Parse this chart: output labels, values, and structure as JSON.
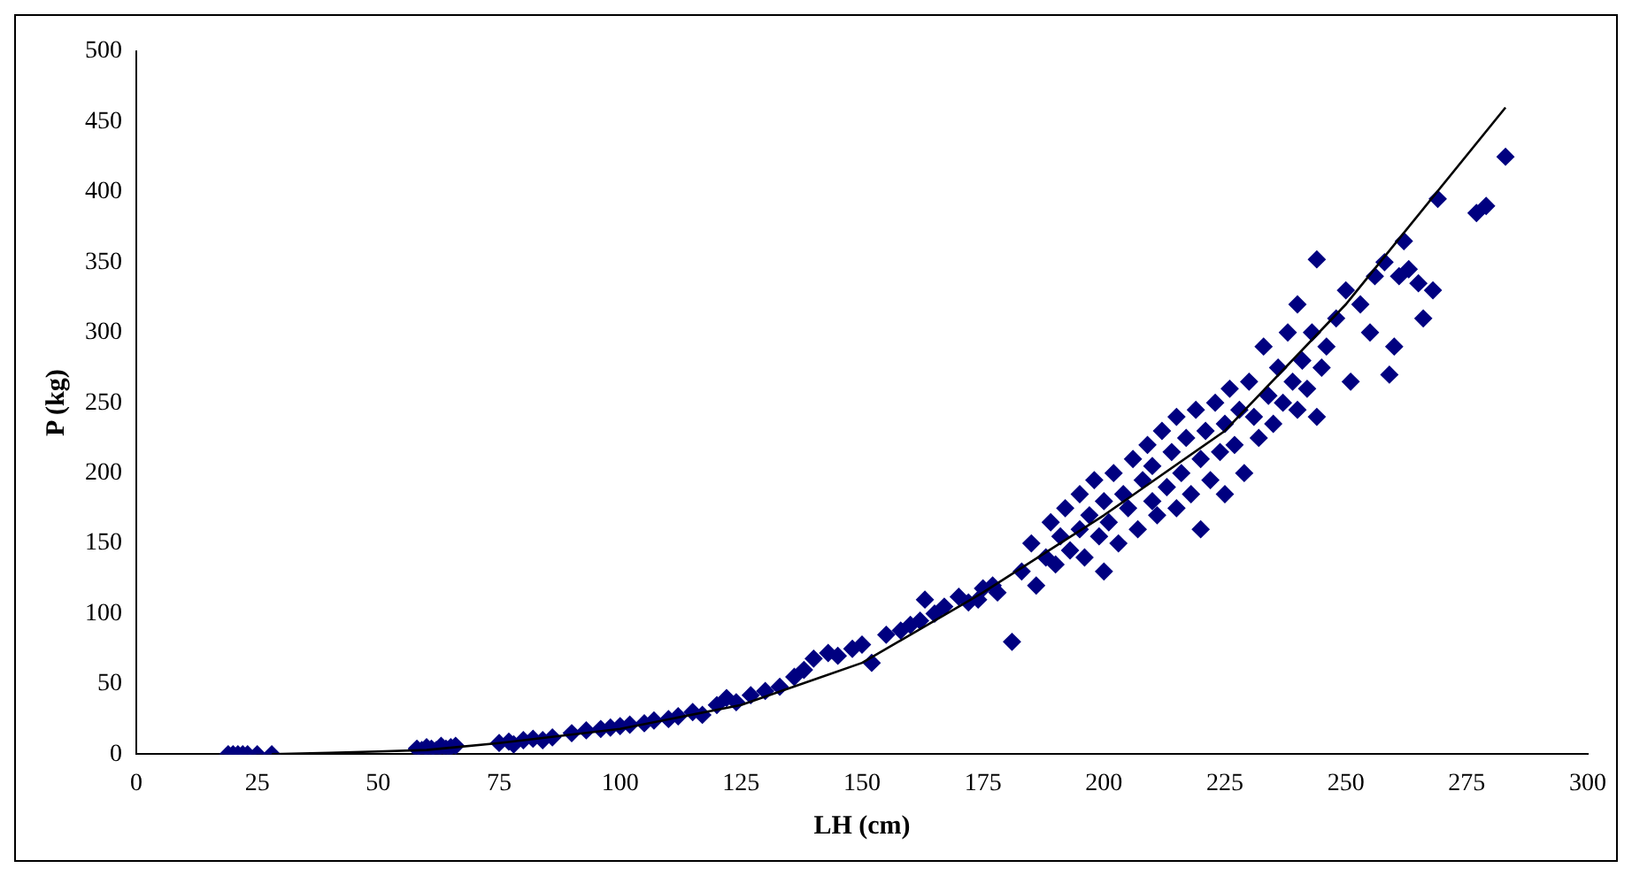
{
  "chart_data": {
    "type": "scatter",
    "xlabel": "LH (cm)",
    "ylabel": "P (kg)",
    "xlim": [
      0,
      300
    ],
    "xticks": [
      0,
      25,
      50,
      75,
      100,
      125,
      150,
      175,
      200,
      225,
      250,
      275,
      300
    ],
    "ylim": [
      0,
      500
    ],
    "yticks": [
      0,
      50,
      100,
      150,
      200,
      250,
      300,
      350,
      400,
      450,
      500
    ],
    "grid": false,
    "legend": false,
    "series": [
      {
        "type": "scatter",
        "color": "#000080",
        "marker": "diamond",
        "x": [
          19,
          20,
          21,
          22,
          23,
          25,
          28,
          58,
          59,
          60,
          61,
          62,
          63,
          64,
          65,
          66,
          75,
          77,
          78,
          80,
          82,
          84,
          86,
          90,
          93,
          96,
          98,
          100,
          102,
          105,
          107,
          110,
          112,
          115,
          117,
          120,
          122,
          124,
          127,
          130,
          133,
          136,
          138,
          140,
          143,
          145,
          148,
          150,
          152,
          155,
          158,
          160,
          162,
          163,
          165,
          167,
          170,
          172,
          174,
          175,
          177,
          178,
          181,
          183,
          185,
          186,
          188,
          189,
          190,
          191,
          192,
          193,
          195,
          195,
          196,
          197,
          198,
          199,
          200,
          200,
          201,
          202,
          203,
          204,
          205,
          206,
          207,
          208,
          209,
          210,
          210,
          211,
          212,
          213,
          214,
          215,
          215,
          216,
          217,
          218,
          219,
          220,
          220,
          221,
          222,
          223,
          224,
          225,
          225,
          226,
          227,
          228,
          229,
          230,
          231,
          232,
          233,
          234,
          235,
          236,
          237,
          238,
          239,
          240,
          240,
          241,
          242,
          243,
          244,
          244,
          245,
          246,
          248,
          250,
          251,
          253,
          255,
          256,
          258,
          259,
          260,
          261,
          262,
          263,
          265,
          266,
          268,
          269,
          277,
          279,
          283
        ],
        "values": [
          0,
          0,
          0,
          0,
          0,
          0,
          0,
          4,
          3,
          5,
          4,
          3,
          6,
          4,
          5,
          6,
          8,
          9,
          7,
          10,
          11,
          10,
          12,
          15,
          17,
          18,
          19,
          20,
          21,
          22,
          24,
          25,
          27,
          30,
          28,
          35,
          40,
          37,
          42,
          45,
          48,
          55,
          60,
          68,
          72,
          70,
          75,
          78,
          65,
          85,
          88,
          92,
          95,
          110,
          100,
          105,
          112,
          108,
          110,
          118,
          120,
          115,
          80,
          130,
          150,
          120,
          140,
          165,
          135,
          155,
          175,
          145,
          160,
          185,
          140,
          170,
          195,
          155,
          130,
          180,
          165,
          200,
          150,
          185,
          175,
          210,
          160,
          195,
          220,
          180,
          205,
          170,
          230,
          190,
          215,
          175,
          240,
          200,
          225,
          185,
          245,
          210,
          160,
          230,
          195,
          250,
          215,
          235,
          185,
          260,
          220,
          245,
          200,
          265,
          240,
          225,
          290,
          255,
          235,
          275,
          250,
          300,
          265,
          245,
          320,
          280,
          260,
          300,
          352,
          240,
          275,
          290,
          310,
          330,
          265,
          320,
          300,
          340,
          350,
          270,
          290,
          340,
          365,
          345,
          335,
          310,
          330,
          395,
          385,
          390,
          425
        ]
      },
      {
        "type": "line",
        "color": "#000000",
        "marker": "none",
        "x": [
          28,
          40,
          50,
          60,
          75,
          100,
          125,
          150,
          175,
          200,
          225,
          250,
          283
        ],
        "values": [
          0,
          1,
          2,
          3,
          8,
          18,
          35,
          65,
          115,
          170,
          230,
          320,
          460
        ]
      }
    ]
  }
}
